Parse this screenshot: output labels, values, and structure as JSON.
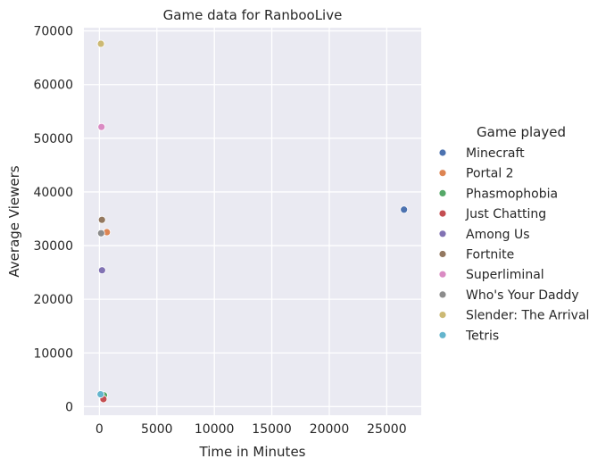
{
  "chart_data": {
    "type": "scatter",
    "title": "Game data for RanbooLive",
    "xlabel": "Time in Minutes",
    "ylabel": "Average Viewers",
    "xlim": [
      -1350,
      28000
    ],
    "ylim": [
      -1600,
      70600
    ],
    "x_ticks": [
      0,
      5000,
      10000,
      15000,
      20000,
      25000
    ],
    "y_ticks": [
      0,
      10000,
      20000,
      30000,
      40000,
      50000,
      60000,
      70000
    ],
    "grid": true,
    "legend_title": "Game played",
    "legend_placement": "right",
    "series": [
      {
        "name": "Minecraft",
        "color": "#4c72b0",
        "points": [
          [
            26500,
            36700
          ]
        ]
      },
      {
        "name": "Portal 2",
        "color": "#dd8452",
        "points": [
          [
            650,
            32500
          ]
        ]
      },
      {
        "name": "Phasmophobia",
        "color": "#55a868",
        "points": [
          [
            400,
            2100
          ]
        ]
      },
      {
        "name": "Just Chatting",
        "color": "#c44e52",
        "points": [
          [
            350,
            1400
          ]
        ]
      },
      {
        "name": "Among Us",
        "color": "#8172b3",
        "points": [
          [
            230,
            25400
          ]
        ]
      },
      {
        "name": "Fortnite",
        "color": "#937860",
        "points": [
          [
            220,
            34800
          ]
        ]
      },
      {
        "name": "Superliminal",
        "color": "#da8bc3",
        "points": [
          [
            180,
            52100
          ]
        ]
      },
      {
        "name": "Who's Your Daddy",
        "color": "#8c8c8c",
        "points": [
          [
            150,
            32300
          ]
        ]
      },
      {
        "name": "Slender: The Arrival",
        "color": "#ccb974",
        "points": [
          [
            130,
            67600
          ]
        ]
      },
      {
        "name": "Tetris",
        "color": "#64b5cd",
        "points": [
          [
            100,
            2300
          ]
        ]
      }
    ]
  }
}
